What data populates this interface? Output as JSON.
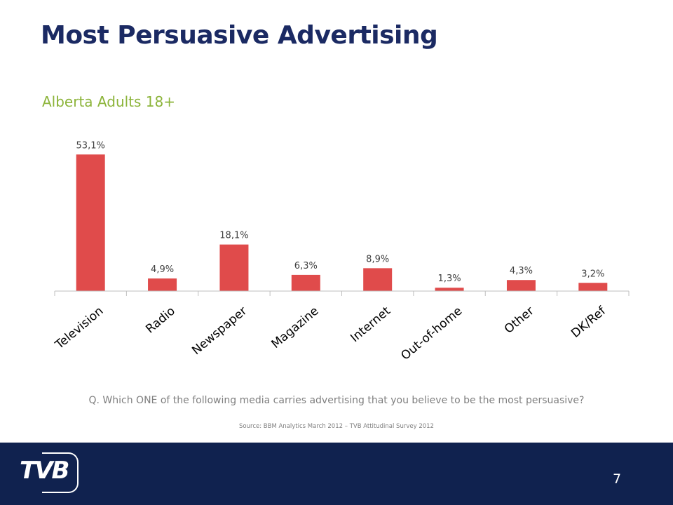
{
  "slide": {
    "title": "Most Persuasive Advertising",
    "subtitle": "Alberta Adults 18+",
    "question": "Q. Which ONE of the following media carries advertising that you believe to be the most persuasive?",
    "source": "Source: BBM Analytics March 2012 – TVB Attitudinal Survey 2012",
    "page_number": "7",
    "logo_text": "TVB"
  },
  "colors": {
    "title": "#1b2a63",
    "subtitle": "#8cb43a",
    "bar": "#e04b4b",
    "footer": "#10224f"
  },
  "chart_data": {
    "type": "bar",
    "categories": [
      "Television",
      "Radio",
      "Newspaper",
      "Magazine",
      "Internet",
      "Out-of-home",
      "Other",
      "DK/Ref"
    ],
    "values": [
      53.1,
      4.9,
      18.1,
      6.3,
      8.9,
      1.3,
      4.3,
      3.2
    ],
    "data_labels": [
      "53,1%",
      "4,9%",
      "18,1%",
      "6,3%",
      "8,9%",
      "1,3%",
      "4,3%",
      "3,2%"
    ],
    "title": "",
    "xlabel": "",
    "ylabel": "",
    "ylim": [
      0,
      55
    ],
    "grid": false,
    "legend": "none"
  }
}
